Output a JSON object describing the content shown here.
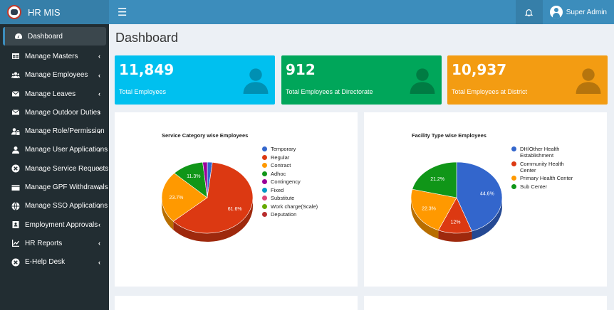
{
  "app": {
    "title": "HR MIS",
    "user_name": "Super Admin"
  },
  "icons": {
    "logo": "app-logo-icon",
    "menu": "hamburger-icon",
    "notifications": "bell-icon",
    "user": "user-avatar-icon",
    "stat": "person-icon"
  },
  "sidebar": {
    "items": [
      {
        "label": "Dashboard",
        "icon": "dashboard-icon",
        "has_submenu": false
      },
      {
        "label": "Manage Masters",
        "icon": "table-icon",
        "has_submenu": true
      },
      {
        "label": "Manage Employees",
        "icon": "users-icon",
        "has_submenu": true
      },
      {
        "label": "Manage Leaves",
        "icon": "envelope-icon",
        "has_submenu": true
      },
      {
        "label": "Manage Outdoor Duties",
        "icon": "envelope-icon",
        "has_submenu": true
      },
      {
        "label": "Manage Role/Permission",
        "icon": "user-lock-icon",
        "has_submenu": true
      },
      {
        "label": "Manage User Applications",
        "icon": "user-icon",
        "has_submenu": true
      },
      {
        "label": "Manage Service Requests",
        "icon": "cross-circle-icon",
        "has_submenu": true
      },
      {
        "label": "Manage GPF Withdrawals",
        "icon": "card-icon",
        "has_submenu": true
      },
      {
        "label": "Manage SSO Applications",
        "icon": "globe-icon",
        "has_submenu": true
      },
      {
        "label": "Employment Approvals",
        "icon": "badge-icon",
        "has_submenu": true
      },
      {
        "label": "HR Reports",
        "icon": "chart-icon",
        "has_submenu": true
      },
      {
        "label": "E-Help Desk",
        "icon": "cross-circle-icon",
        "has_submenu": true
      }
    ],
    "chevron": "‹"
  },
  "page": {
    "title": "Dashboard"
  },
  "stats": [
    {
      "value": "11,849",
      "label": "Total Employees",
      "color": "#00c0ef"
    },
    {
      "value": "912",
      "label": "Total Employees at Directorate",
      "color": "#00a65a"
    },
    {
      "value": "10,937",
      "label": "Total Employees at District",
      "color": "#f39c12"
    }
  ],
  "chart_data": [
    {
      "type": "pie",
      "title": "Service Category wise Employees",
      "categories": [
        "Temporary",
        "Regular",
        "Contract",
        "Adhoc",
        "Contingency",
        "Fixed",
        "Substitute",
        "Work charge(Scale)",
        "Deputation"
      ],
      "values": [
        1.8,
        61.6,
        23.7,
        11.3,
        1.6,
        0,
        0,
        0,
        0
      ],
      "data_labels": [
        "",
        "61.6%",
        "23.7%",
        "11.3%",
        "",
        "",
        "",
        "",
        ""
      ],
      "colors": [
        "#3366cc",
        "#dc3912",
        "#ff9900",
        "#109618",
        "#990099",
        "#0099c6",
        "#dd4477",
        "#66aa00",
        "#b82e2e"
      ],
      "legend": "right",
      "is_3d": true
    },
    {
      "type": "pie",
      "title": "Facility Type wise Employees",
      "categories": [
        "DH/Other Health Establishment",
        "Community Health Center",
        "Primary Health Center",
        "Sub Center"
      ],
      "values": [
        44.6,
        12,
        22.3,
        21.2
      ],
      "data_labels": [
        "44.6%",
        "12%",
        "22.3%",
        "21.2%"
      ],
      "colors": [
        "#3366cc",
        "#dc3912",
        "#ff9900",
        "#109618"
      ],
      "legend": "right",
      "is_3d": true
    }
  ]
}
